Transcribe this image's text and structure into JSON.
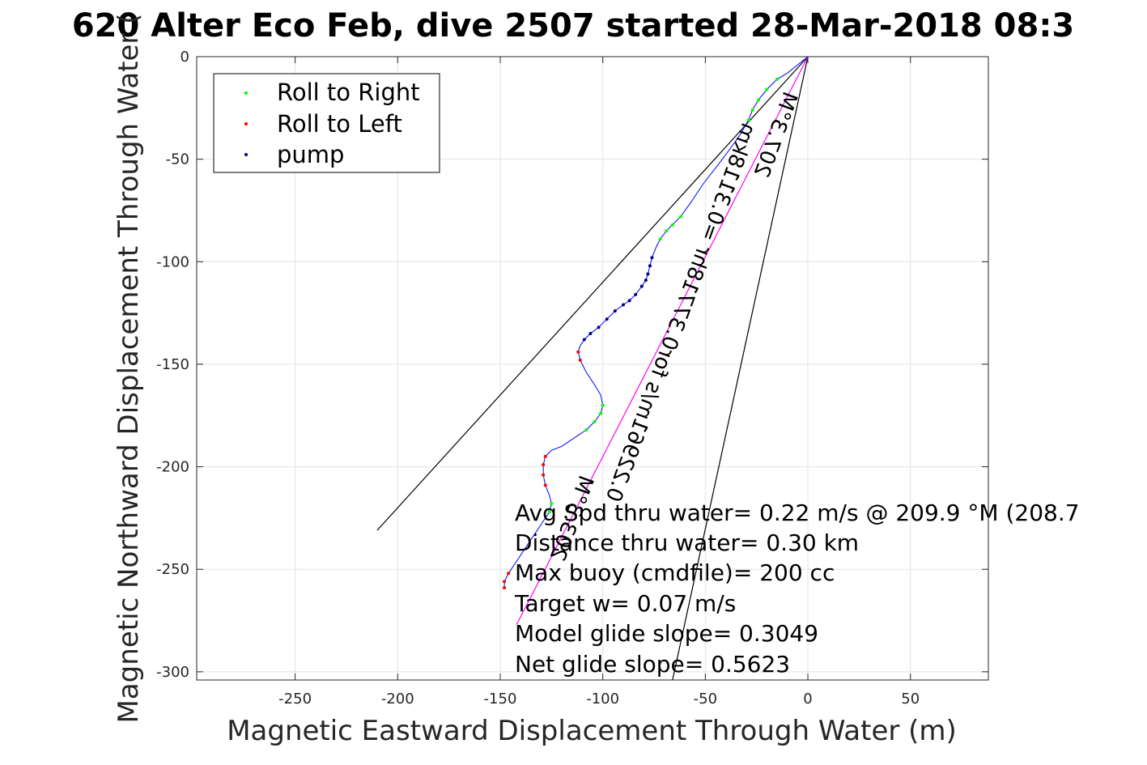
{
  "chart_data": {
    "type": "line",
    "title": "620 Alter Eco Feb, dive 2507 started 28-Mar-2018 08:3",
    "xlabel": "Magnetic Eastward Displacement Through Water (m)",
    "ylabel": "Magnetic Northward Displacement Through Water (",
    "xlim": [
      -298,
      88
    ],
    "ylim": [
      -304,
      0
    ],
    "x_ticks": [
      -250,
      -200,
      -150,
      -100,
      -50,
      0,
      50
    ],
    "y_ticks": [
      0,
      -50,
      -100,
      -150,
      -200,
      -250,
      -300
    ],
    "x_tick_labels": [
      "-250",
      "-200",
      "-150",
      "-100",
      "-50",
      "0",
      "50"
    ],
    "y_tick_labels": [
      "0",
      "-50",
      "-100",
      "-150",
      "-200",
      "-250",
      "-300"
    ],
    "grid": true,
    "legend": {
      "placement": "top-left",
      "entries": [
        {
          "label": "Roll to Right",
          "color": "#00ff00"
        },
        {
          "label": "Roll to Left",
          "color": "#ff0000"
        },
        {
          "label": "pump",
          "color": "#000080"
        }
      ]
    },
    "series": [
      {
        "name": "track",
        "color": "#0000ff",
        "points": [
          [
            0,
            0
          ],
          [
            -5,
            -4
          ],
          [
            -10,
            -8
          ],
          [
            -15,
            -11
          ],
          [
            -20,
            -16
          ],
          [
            -24,
            -21
          ],
          [
            -27,
            -26
          ],
          [
            -29,
            -31
          ],
          [
            -33,
            -38
          ],
          [
            -38,
            -45
          ],
          [
            -44,
            -53
          ],
          [
            -51,
            -62
          ],
          [
            -57,
            -71
          ],
          [
            -62,
            -78
          ],
          [
            -66,
            -82
          ],
          [
            -69,
            -85
          ],
          [
            -72,
            -89
          ],
          [
            -74,
            -93
          ],
          [
            -76,
            -98
          ],
          [
            -77,
            -102
          ],
          [
            -78,
            -106
          ],
          [
            -79,
            -109
          ],
          [
            -81,
            -112
          ],
          [
            -84,
            -116
          ],
          [
            -87,
            -119
          ],
          [
            -90,
            -121
          ],
          [
            -94,
            -124
          ],
          [
            -98,
            -128
          ],
          [
            -102,
            -132
          ],
          [
            -106,
            -135
          ],
          [
            -109,
            -138
          ],
          [
            -111,
            -141
          ],
          [
            -112,
            -144
          ],
          [
            -111,
            -148
          ],
          [
            -108,
            -154
          ],
          [
            -104,
            -160
          ],
          [
            -101,
            -165
          ],
          [
            -100,
            -170
          ],
          [
            -101,
            -174
          ],
          [
            -104,
            -178
          ],
          [
            -108,
            -182
          ],
          [
            -114,
            -186
          ],
          [
            -120,
            -190
          ],
          [
            -125,
            -192
          ],
          [
            -128,
            -195
          ],
          [
            -129,
            -199
          ],
          [
            -129,
            -204
          ],
          [
            -128,
            -209
          ],
          [
            -126,
            -214
          ],
          [
            -125,
            -218
          ],
          [
            -126,
            -222
          ],
          [
            -130,
            -228
          ],
          [
            -134,
            -234
          ],
          [
            -138,
            -240
          ],
          [
            -142,
            -246
          ],
          [
            -146,
            -252
          ],
          [
            -148,
            -256
          ],
          [
            -148,
            -259
          ]
        ]
      }
    ],
    "markers": {
      "roll_right": [
        [
          -15,
          -11
        ],
        [
          -20,
          -16
        ],
        [
          -24,
          -21
        ],
        [
          -27,
          -26
        ],
        [
          -29,
          -31
        ],
        [
          -62,
          -78
        ],
        [
          -66,
          -82
        ],
        [
          -69,
          -85
        ],
        [
          -72,
          -89
        ],
        [
          -100,
          -170
        ],
        [
          -101,
          -174
        ],
        [
          -104,
          -178
        ],
        [
          -108,
          -182
        ],
        [
          -125,
          -218
        ],
        [
          -126,
          -222
        ]
      ],
      "roll_left": [
        [
          -112,
          -144
        ],
        [
          -111,
          -148
        ],
        [
          -128,
          -195
        ],
        [
          -129,
          -199
        ],
        [
          -129,
          -204
        ],
        [
          -128,
          -209
        ],
        [
          -146,
          -252
        ],
        [
          -148,
          -256
        ],
        [
          -148,
          -259
        ]
      ],
      "pump": [
        [
          -76,
          -98
        ],
        [
          -77,
          -102
        ],
        [
          -78,
          -106
        ],
        [
          -79,
          -109
        ],
        [
          -81,
          -112
        ],
        [
          -84,
          -116
        ],
        [
          -87,
          -119
        ],
        [
          -90,
          -121
        ],
        [
          -94,
          -124
        ],
        [
          -98,
          -128
        ],
        [
          -102,
          -132
        ],
        [
          -106,
          -135
        ],
        [
          -109,
          -138
        ]
      ]
    },
    "reference_lines": [
      {
        "from": [
          0,
          0
        ],
        "to": [
          -210,
          -231
        ],
        "color": "#000000"
      },
      {
        "from": [
          0,
          0
        ],
        "to": [
          -66,
          -304
        ],
        "color": "#000000"
      },
      {
        "from": [
          0,
          0
        ],
        "to": [
          -142,
          -277
        ],
        "color": "#ff00ff"
      }
    ],
    "rotated_labels": [
      "207.3°M",
      "0.22961m/s for0.37718hr =0.3118km",
      "203.3°M"
    ],
    "annotations": [
      "Avg Spd thru water=  0.22 m/s @ 209.9 °M (208.7",
      "Distance thru water=  0.30 km",
      "Max buoy (cmdfile)= 200 cc",
      "Target w= 0.07 m/s",
      "Model glide slope= 0.3049",
      "Net glide slope= 0.5623"
    ]
  }
}
